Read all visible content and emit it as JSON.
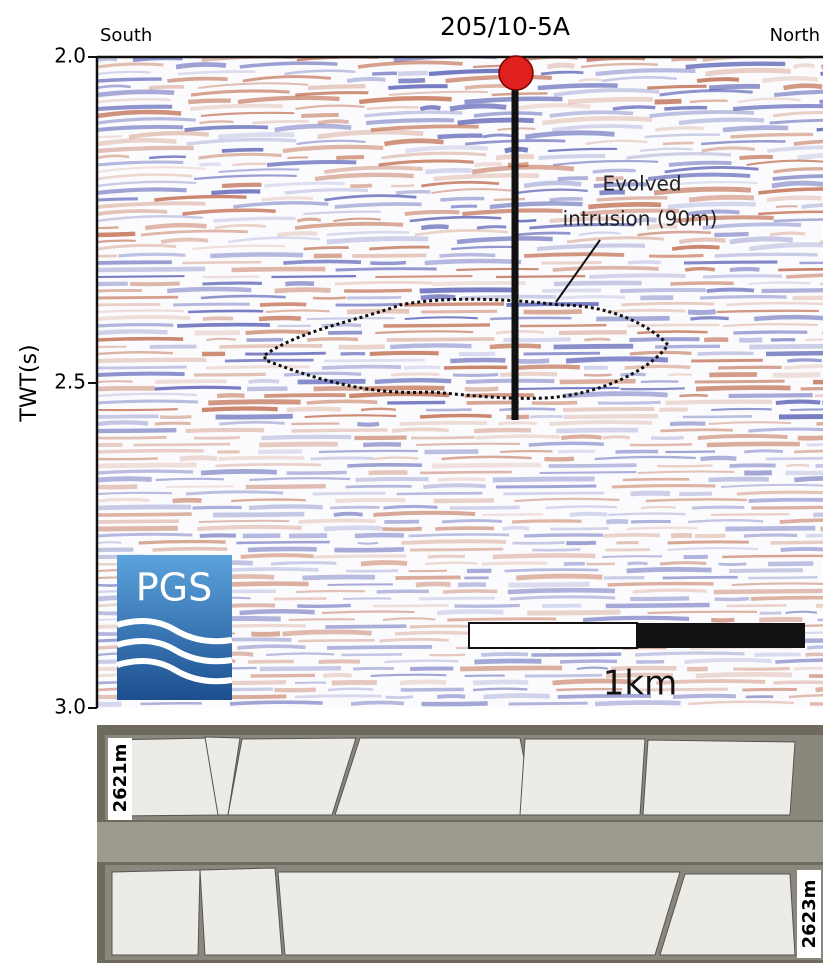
{
  "header": {
    "title": "205/10-5A",
    "left_label": "South",
    "right_label": "North"
  },
  "axis": {
    "label": "TWT(s)",
    "ticks": [
      "2.0",
      "2.5",
      "3.0"
    ]
  },
  "annotation": {
    "lines": [
      "Evolved",
      "intrusion (90m)"
    ]
  },
  "scale_bar": {
    "label": "1km"
  },
  "logo": {
    "text": "PGS"
  },
  "core": {
    "depth_top": "2621m",
    "depth_bottom": "2623m"
  }
}
